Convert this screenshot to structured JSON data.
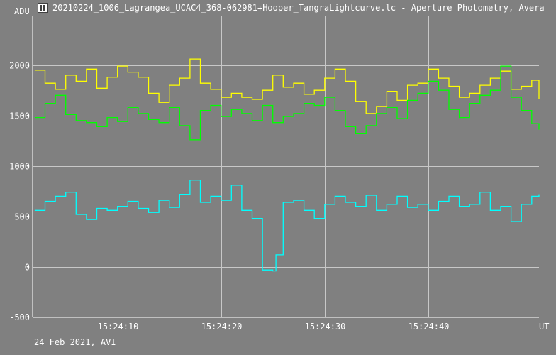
{
  "window": {
    "title": "20210224_1006_Lagrangea_UCAC4_368-062981+Hooper_TangraLightcurve.lc - Aperture Photometry, Avera"
  },
  "footer": {
    "note": "24 Feb 2021, AVI"
  },
  "chart_data": {
    "type": "line",
    "ylabel": "ADU",
    "xlabel": "UT",
    "x_tick_labels": [
      "15:24:10",
      "15:24:20",
      "15:24:30",
      "15:24:40"
    ],
    "x_tick_seconds": [
      10,
      20,
      30,
      40
    ],
    "x_range_seconds": [
      1.8,
      50.7
    ],
    "y_ticks": [
      0,
      500,
      1000,
      1500,
      2000
    ],
    "y_tick_labels": [
      "0",
      "500",
      "1000",
      "1500",
      "2000"
    ],
    "ylim_label": "-500",
    "ylim": [
      -500,
      2490
    ],
    "grid": true,
    "background": "#808080",
    "axis_color": "#ffffff",
    "series": [
      {
        "color": "#ffff00",
        "x_seconds": [
          2,
          3,
          4,
          5,
          6,
          7,
          8,
          9,
          10,
          11,
          12,
          13,
          14,
          15,
          16,
          17,
          18,
          19,
          20,
          21,
          22,
          23,
          24,
          25,
          26,
          27,
          28,
          29,
          30,
          31,
          32,
          33,
          34,
          35,
          36,
          37,
          38,
          39,
          40,
          41,
          42,
          43,
          44,
          45,
          46,
          47,
          48,
          49,
          50,
          50.7
        ],
        "values": [
          1950,
          1820,
          1760,
          1900,
          1840,
          1960,
          1770,
          1880,
          1990,
          1930,
          1880,
          1720,
          1630,
          1800,
          1870,
          2060,
          1820,
          1760,
          1680,
          1720,
          1680,
          1660,
          1750,
          1900,
          1780,
          1820,
          1710,
          1750,
          1870,
          1960,
          1840,
          1640,
          1520,
          1590,
          1740,
          1650,
          1800,
          1820,
          1960,
          1870,
          1790,
          1680,
          1720,
          1800,
          1870,
          1940,
          1760,
          1790,
          1850,
          1660
        ]
      },
      {
        "color": "#00ff00",
        "x_seconds": [
          2,
          3,
          4,
          5,
          6,
          7,
          8,
          9,
          10,
          11,
          12,
          13,
          14,
          15,
          16,
          17,
          18,
          19,
          20,
          21,
          22,
          23,
          24,
          25,
          26,
          27,
          28,
          29,
          30,
          31,
          32,
          33,
          34,
          35,
          36,
          37,
          38,
          39,
          40,
          41,
          42,
          43,
          44,
          45,
          46,
          47,
          48,
          49,
          50,
          50.7
        ],
        "values": [
          1480,
          1620,
          1700,
          1510,
          1450,
          1430,
          1390,
          1480,
          1440,
          1580,
          1520,
          1460,
          1430,
          1580,
          1400,
          1260,
          1550,
          1600,
          1490,
          1560,
          1520,
          1450,
          1600,
          1430,
          1490,
          1520,
          1620,
          1600,
          1680,
          1550,
          1390,
          1320,
          1400,
          1520,
          1580,
          1470,
          1650,
          1720,
          1840,
          1750,
          1560,
          1480,
          1620,
          1700,
          1750,
          1990,
          1680,
          1550,
          1420,
          1360
        ]
      },
      {
        "color": "#00ffff",
        "x_seconds": [
          2,
          3,
          4,
          5,
          6,
          7,
          8,
          9,
          10,
          11,
          12,
          13,
          14,
          15,
          16,
          17,
          18,
          19,
          20,
          21,
          22,
          23,
          24,
          25,
          25.3,
          26,
          27,
          28,
          29,
          30,
          31,
          32,
          33,
          34,
          35,
          36,
          37,
          38,
          39,
          40,
          41,
          42,
          43,
          44,
          45,
          46,
          47,
          48,
          49,
          50,
          50.7
        ],
        "values": [
          560,
          650,
          700,
          740,
          520,
          470,
          580,
          560,
          600,
          650,
          580,
          540,
          660,
          590,
          720,
          860,
          640,
          700,
          660,
          810,
          560,
          480,
          -30,
          -40,
          120,
          640,
          660,
          560,
          480,
          620,
          700,
          640,
          600,
          710,
          560,
          620,
          700,
          590,
          620,
          560,
          650,
          700,
          600,
          620,
          740,
          560,
          600,
          450,
          620,
          700,
          720
        ]
      }
    ]
  }
}
